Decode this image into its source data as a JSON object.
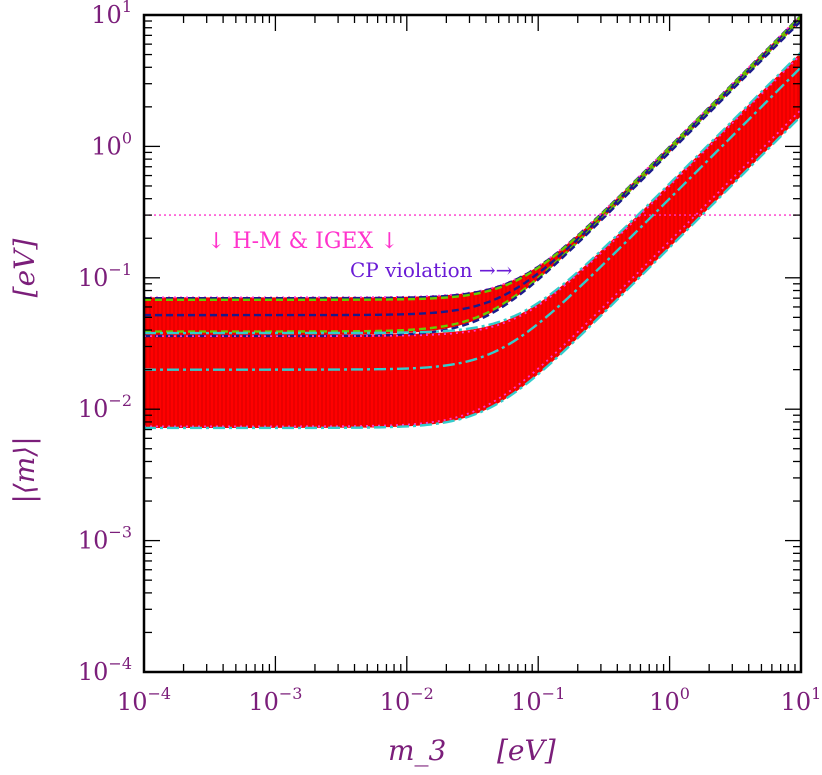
{
  "chart_data": {
    "type": "line",
    "title": "",
    "xlabel": "m_3",
    "xunit": "[eV]",
    "ylabel": "|⟨m⟩|",
    "yunit": "[eV]",
    "xscale": "log",
    "yscale": "log",
    "xlim": [
      0.0001,
      10
    ],
    "ylim": [
      0.0001,
      10
    ],
    "x_tick_labels": [
      {
        "base": "10",
        "exp": "−4"
      },
      {
        "base": "10",
        "exp": "−3"
      },
      {
        "base": "10",
        "exp": "−2"
      },
      {
        "base": "10",
        "exp": "−1"
      },
      {
        "base": "10",
        "exp": "0"
      },
      {
        "base": "10",
        "exp": "1"
      }
    ],
    "y_tick_labels": [
      {
        "base": "10",
        "exp": "−4"
      },
      {
        "base": "10",
        "exp": "−3"
      },
      {
        "base": "10",
        "exp": "−2"
      },
      {
        "base": "10",
        "exp": "−1"
      },
      {
        "base": "10",
        "exp": "0"
      },
      {
        "base": "10",
        "exp": "1"
      }
    ],
    "grid": false,
    "bands": [
      {
        "lower_plateau": 0.0072,
        "upper_plateau": 0.037,
        "lower_slope_factor": 0.17,
        "upper_slope_factor": 0.52,
        "color": "#ff0000"
      },
      {
        "lower_plateau": 0.037,
        "upper_plateau": 0.071,
        "lower_slope_factor": 0.9,
        "upper_slope_factor": 1.0,
        "color": "#ff0000"
      }
    ],
    "curves": [
      {
        "plateau": 0.071,
        "slope_factor": 1.0,
        "color": "#ff33cc",
        "style": "dotted"
      },
      {
        "plateau": 0.07,
        "slope_factor": 0.99,
        "color": "#1a1a8c",
        "style": "dashed"
      },
      {
        "plateau": 0.068,
        "slope_factor": 0.98,
        "color": "#66cc00",
        "style": "dashed"
      },
      {
        "plateau": 0.052,
        "slope_factor": 0.95,
        "color": "#1a1a8c",
        "style": "dashed"
      },
      {
        "plateau": 0.039,
        "slope_factor": 0.92,
        "color": "#66cc00",
        "style": "dashed"
      },
      {
        "plateau": 0.036,
        "slope_factor": 0.9,
        "color": "#1a1a8c",
        "style": "dashed"
      },
      {
        "plateau": 0.038,
        "slope_factor": 0.52,
        "color": "#33cccc",
        "style": "dashdot"
      },
      {
        "plateau": 0.036,
        "slope_factor": 0.5,
        "color": "#ff33cc",
        "style": "dotted"
      },
      {
        "plateau": 0.02,
        "slope_factor": 0.4,
        "color": "#33cccc",
        "style": "dashdot"
      },
      {
        "plateau": 0.0074,
        "slope_factor": 0.19,
        "color": "#ff33cc",
        "style": "dotted"
      },
      {
        "plateau": 0.0072,
        "slope_factor": 0.17,
        "color": "#33cccc",
        "style": "dashdot"
      }
    ],
    "reference_line": {
      "y": 0.3,
      "color": "#ff33cc",
      "style": "dotted"
    },
    "annotations": {
      "hm": "↓ H-M & IGEX ↓",
      "cp": "CP violation →→"
    }
  }
}
